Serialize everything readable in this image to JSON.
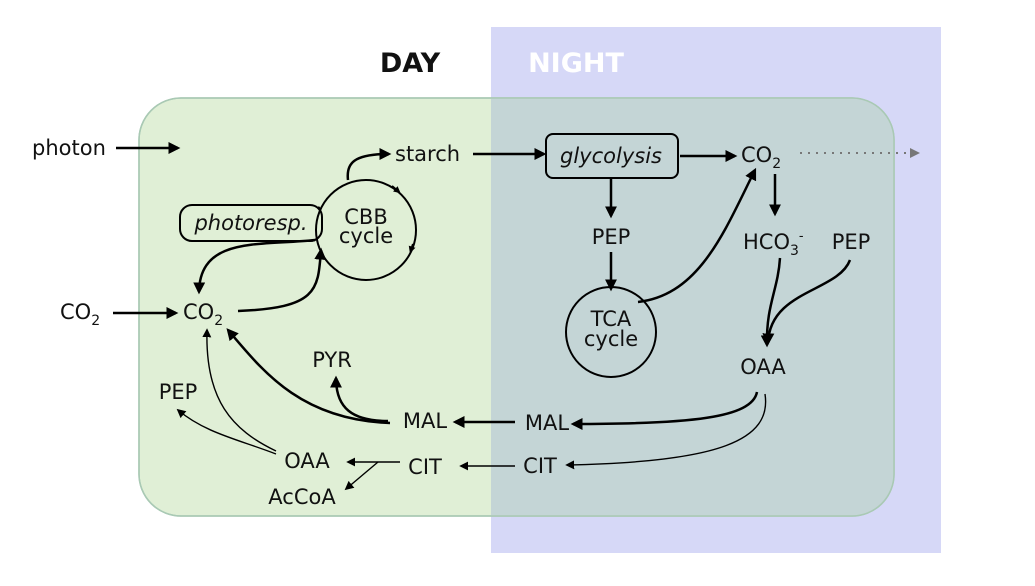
{
  "header": {
    "day_label": "DAY",
    "night_label": "NIGHT"
  },
  "colors": {
    "day_region": "#e0efd6",
    "night_region": "#d6d8f7",
    "overlap_region": "#c4d5d6",
    "cell_border": "#a9c9b4",
    "night_header_text": "#ffffff",
    "process_box_fill": "#c4d5d6"
  },
  "labels": {
    "photon": "photon",
    "starch": "starch",
    "glycolysis": "glycolysis",
    "co2_night": "CO",
    "co2_night_sub": "2",
    "co2_ext": "CO",
    "co2_ext_sub": "2",
    "co2_int": "CO",
    "co2_int_sub": "2",
    "photoresp": "photoresp.",
    "cbb_line1": "CBB",
    "cbb_line2": "cycle",
    "pep_night": "PEP",
    "hco3": "HCO",
    "hco3_sub": "3",
    "hco3_sup": "-",
    "pep_right": "PEP",
    "tca_line1": "TCA",
    "tca_line2": "cycle",
    "oaa_night": "OAA",
    "pyr": "PYR",
    "pep_day": "PEP",
    "mal_day": "MAL",
    "mal_night": "MAL",
    "oaa_day": "OAA",
    "cit_day": "CIT",
    "cit_night": "CIT",
    "accoa": "AcCoA"
  }
}
